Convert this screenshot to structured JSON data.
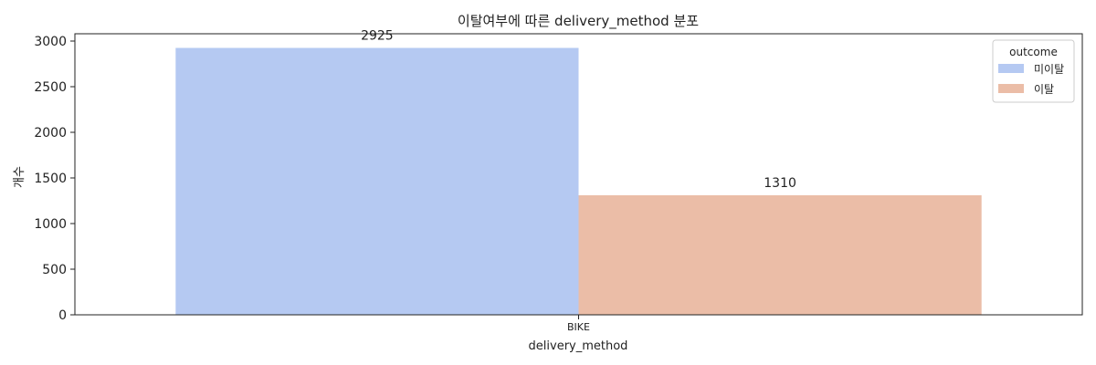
{
  "chart_data": {
    "type": "bar",
    "title": "이탈여부에 따른 delivery_method 분포",
    "xlabel": "delivery_method",
    "ylabel": "개수",
    "categories": [
      "BIKE"
    ],
    "ylim": [
      0,
      3080
    ],
    "yticks": [
      0,
      500,
      1000,
      1500,
      2000,
      2500,
      3000
    ],
    "grid": false,
    "legend_position": "top-right",
    "legend_title": "outcome",
    "series": [
      {
        "name": "미이탈",
        "values": [
          2925
        ],
        "color": "#b5c9f2"
      },
      {
        "name": "이탈",
        "values": [
          1310
        ],
        "color": "#ebbda7"
      }
    ]
  }
}
